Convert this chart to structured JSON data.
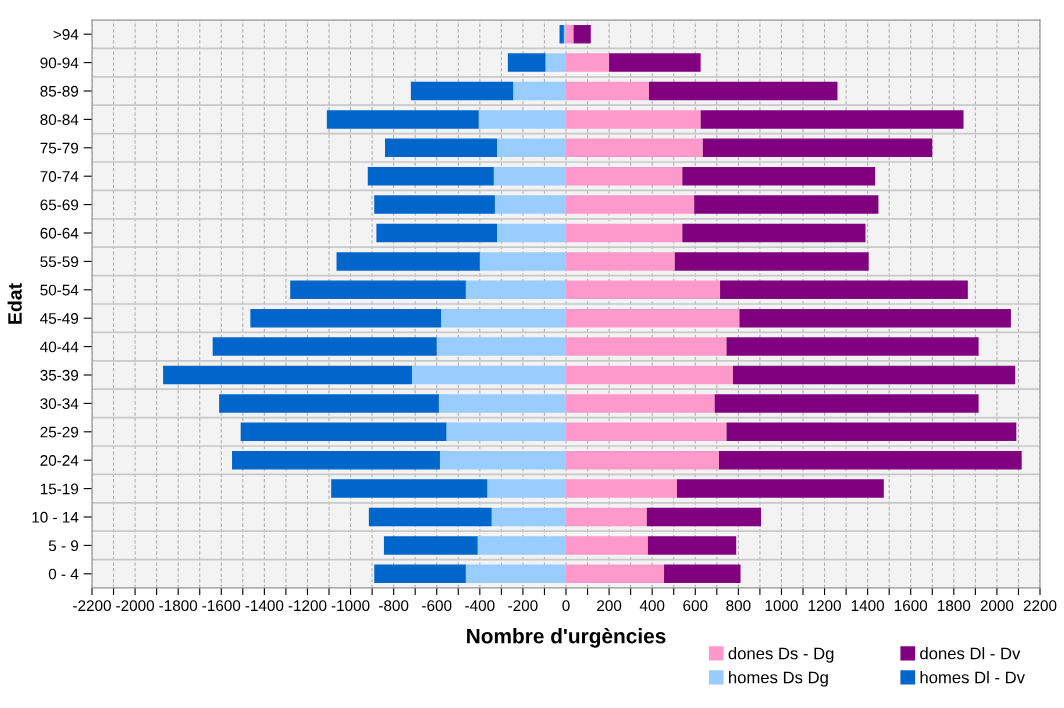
{
  "chart_data": {
    "type": "bar",
    "orientation": "horizontal",
    "stacked": true,
    "xlabel": "Nombre d'urgències",
    "ylabel": "Edat",
    "categories": [
      ">94",
      "90-94",
      "85-89",
      "80-84",
      "75-79",
      "70-74",
      "65-69",
      "60-64",
      "55-59",
      "50-54",
      "45-49",
      "40-44",
      "35-39",
      "30-34",
      "25-29",
      "20-24",
      "15-19",
      "10 - 14",
      "5 - 9",
      "0 - 4"
    ],
    "series": [
      {
        "name": "dones Ds - Dg",
        "color": "#ff99cc",
        "values": [
          35,
          200,
          385,
          625,
          635,
          540,
          595,
          540,
          505,
          715,
          805,
          745,
          775,
          690,
          745,
          710,
          515,
          375,
          380,
          455
        ]
      },
      {
        "name": "dones Dl - Dv",
        "color": "#800080",
        "values": [
          80,
          425,
          875,
          1220,
          1065,
          895,
          855,
          850,
          900,
          1150,
          1260,
          1170,
          1310,
          1225,
          1345,
          1405,
          960,
          530,
          410,
          355
        ]
      },
      {
        "name": "homes Ds Dg",
        "color": "#99ccff",
        "values": [
          -10,
          -95,
          -245,
          -405,
          -320,
          -335,
          -330,
          -320,
          -400,
          -465,
          -580,
          -600,
          -715,
          -590,
          -555,
          -585,
          -365,
          -345,
          -410,
          -465
        ]
      },
      {
        "name": "homes Dl - Dv",
        "color": "#0066cc",
        "values": [
          -20,
          -175,
          -475,
          -705,
          -520,
          -585,
          -560,
          -560,
          -665,
          -815,
          -885,
          -1040,
          -1155,
          -1020,
          -955,
          -965,
          -725,
          -570,
          -435,
          -425
        ]
      }
    ],
    "xlim": [
      -2200,
      2200
    ],
    "xticks": [
      -2200,
      {
        "value": -2100,
        "label": null
      },
      -2000,
      {
        "value": -1900,
        "label": null
      },
      -1800,
      {
        "value": -1700,
        "label": null
      },
      -1600,
      {
        "value": -1500,
        "label": null
      },
      -1400,
      {
        "value": -1300,
        "label": null
      },
      -1200,
      {
        "value": -1100,
        "label": null
      },
      -1000,
      {
        "value": -900,
        "label": null
      },
      -800,
      {
        "value": -700,
        "label": null
      },
      -600,
      {
        "value": -500,
        "label": null
      },
      -400,
      {
        "value": -300,
        "label": null
      },
      -200,
      {
        "value": -100,
        "label": null
      },
      0,
      {
        "value": 100,
        "label": null
      },
      200,
      {
        "value": 300,
        "label": null
      },
      400,
      {
        "value": 500,
        "label": null
      },
      600,
      {
        "value": 700,
        "label": null
      },
      800,
      {
        "value": 900,
        "label": null
      },
      1000,
      {
        "value": 1100,
        "label": null
      },
      1200,
      {
        "value": 1300,
        "label": null
      },
      1400,
      {
        "value": 1500,
        "label": null
      },
      1600,
      {
        "value": 1700,
        "label": null
      },
      1800,
      {
        "value": 1900,
        "label": null
      },
      2000,
      {
        "value": 2100,
        "label": null
      },
      2200
    ],
    "grid": true,
    "legend": "bottom right"
  }
}
